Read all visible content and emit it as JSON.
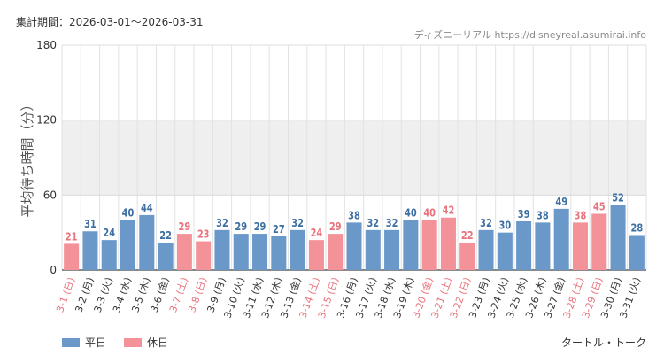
{
  "header": {
    "period": "集計期間：2026-03-01〜2026-03-31",
    "credit": "ディズニーリアル https://disneyreal.asumirai.info"
  },
  "footer": {
    "attraction": "タートル・トーク"
  },
  "legend": {
    "weekday": "平日",
    "holiday": "休日"
  },
  "colors": {
    "weekday": "#6a98c8",
    "holiday": "#f4929a",
    "weekday_label": "#3e6fa2",
    "holiday_label": "#e8737c",
    "band": "#efefef"
  },
  "chart_data": {
    "type": "bar",
    "title": "",
    "xlabel": "",
    "ylabel": "平均待ち時間（分）",
    "ylim": [
      0,
      180
    ],
    "yticks": [
      0,
      60,
      120,
      180
    ],
    "categories": [
      "3-1 (日)",
      "3-2 (月)",
      "3-3 (火)",
      "3-4 (水)",
      "3-5 (木)",
      "3-6 (金)",
      "3-7 (土)",
      "3-8 (日)",
      "3-9 (月)",
      "3-10 (火)",
      "3-11 (水)",
      "3-12 (木)",
      "3-13 (金)",
      "3-14 (土)",
      "3-15 (日)",
      "3-16 (月)",
      "3-17 (火)",
      "3-18 (水)",
      "3-19 (木)",
      "3-20 (金)",
      "3-21 (土)",
      "3-22 (日)",
      "3-23 (月)",
      "3-24 (火)",
      "3-25 (水)",
      "3-26 (木)",
      "3-27 (金)",
      "3-28 (土)",
      "3-29 (日)",
      "3-30 (月)",
      "3-31 (火)"
    ],
    "values": [
      21,
      31,
      24,
      40,
      44,
      22,
      29,
      23,
      32,
      29,
      29,
      27,
      32,
      24,
      29,
      38,
      32,
      32,
      40,
      40,
      42,
      22,
      32,
      30,
      39,
      38,
      49,
      38,
      45,
      52,
      28
    ],
    "day_type": [
      "holiday",
      "weekday",
      "weekday",
      "weekday",
      "weekday",
      "weekday",
      "holiday",
      "holiday",
      "weekday",
      "weekday",
      "weekday",
      "weekday",
      "weekday",
      "holiday",
      "holiday",
      "weekday",
      "weekday",
      "weekday",
      "weekday",
      "holiday",
      "holiday",
      "holiday",
      "weekday",
      "weekday",
      "weekday",
      "weekday",
      "weekday",
      "holiday",
      "holiday",
      "weekday",
      "weekday"
    ],
    "shaded_band": [
      60,
      120
    ]
  }
}
